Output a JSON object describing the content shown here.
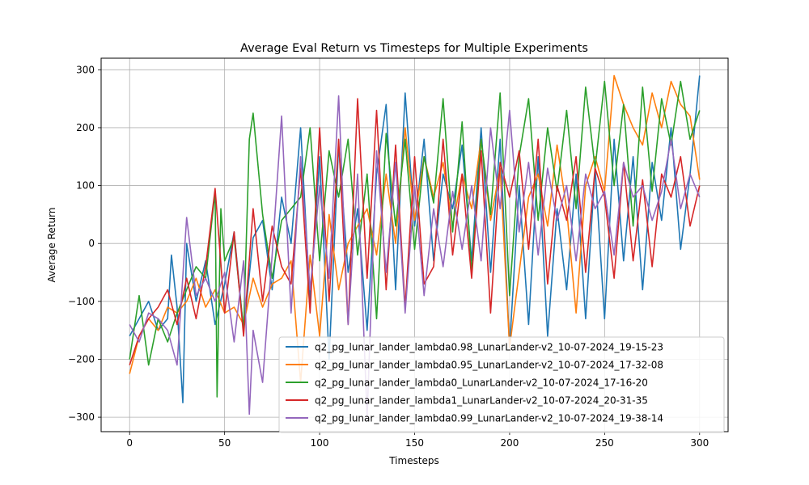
{
  "chart_data": {
    "type": "line",
    "title": "Average Eval Return vs Timesteps for Multiple Experiments",
    "xlabel": "Timesteps",
    "ylabel": "Average Return",
    "xlim": [
      -15,
      315
    ],
    "ylim": [
      -325,
      320
    ],
    "xticks": [
      0,
      50,
      100,
      150,
      200,
      250,
      300
    ],
    "yticks": [
      -300,
      -200,
      -100,
      0,
      100,
      200,
      300
    ],
    "grid": true,
    "legend_position": "lower-right",
    "series": [
      {
        "name": "q2_pg_lunar_lander_lambda0.98_LunarLander-v2_10-07-2024_19-15-23",
        "color": "#1f77b4",
        "x": [
          0,
          5,
          10,
          15,
          20,
          22,
          25,
          28,
          30,
          35,
          40,
          45,
          50,
          55,
          60,
          65,
          70,
          75,
          80,
          85,
          90,
          95,
          100,
          105,
          110,
          115,
          120,
          125,
          130,
          135,
          140,
          145,
          150,
          155,
          160,
          165,
          170,
          175,
          180,
          185,
          190,
          195,
          200,
          205,
          210,
          215,
          220,
          225,
          230,
          235,
          240,
          245,
          250,
          255,
          260,
          265,
          270,
          275,
          280,
          285,
          290,
          295,
          300
        ],
        "y": [
          -160,
          -130,
          -100,
          -150,
          -130,
          -20,
          -110,
          -275,
          0,
          -100,
          -30,
          -140,
          -70,
          20,
          -150,
          10,
          40,
          -80,
          80,
          0,
          200,
          -100,
          150,
          -200,
          170,
          -50,
          60,
          -150,
          120,
          240,
          -80,
          260,
          30,
          180,
          -30,
          120,
          60,
          170,
          -30,
          200,
          -50,
          180,
          -180,
          100,
          -140,
          150,
          -160,
          60,
          -80,
          120,
          -130,
          130,
          -130,
          180,
          -30,
          150,
          -80,
          140,
          40,
          200,
          -10,
          120,
          290
        ]
      },
      {
        "name": "q2_pg_lunar_lander_lambda0.95_LunarLander-v2_10-07-2024_17-32-08",
        "color": "#ff7f0e",
        "x": [
          0,
          5,
          10,
          15,
          20,
          25,
          30,
          35,
          40,
          45,
          50,
          55,
          60,
          65,
          70,
          75,
          80,
          85,
          90,
          95,
          100,
          105,
          110,
          115,
          120,
          125,
          130,
          135,
          140,
          145,
          150,
          155,
          160,
          165,
          170,
          175,
          180,
          185,
          190,
          195,
          200,
          205,
          210,
          215,
          220,
          225,
          230,
          235,
          240,
          245,
          250,
          255,
          260,
          265,
          270,
          275,
          280,
          285,
          290,
          295,
          300
        ],
        "y": [
          -225,
          -160,
          -130,
          -150,
          -110,
          -120,
          -100,
          -60,
          -110,
          -80,
          -120,
          -110,
          -140,
          -60,
          -110,
          -70,
          -60,
          -30,
          -240,
          -20,
          -160,
          50,
          -80,
          0,
          30,
          60,
          -20,
          120,
          0,
          200,
          40,
          150,
          80,
          140,
          30,
          120,
          60,
          180,
          40,
          130,
          -180,
          -50,
          80,
          120,
          30,
          170,
          60,
          -120,
          100,
          150,
          90,
          290,
          240,
          200,
          170,
          260,
          200,
          280,
          240,
          220,
          110
        ]
      },
      {
        "name": "q2_pg_lunar_lander_lambda0_LunarLander-v2_10-07-2024_17-16-20",
        "color": "#2ca02c",
        "x": [
          0,
          5,
          10,
          15,
          20,
          25,
          30,
          35,
          40,
          45,
          46,
          48,
          50,
          55,
          60,
          63,
          65,
          70,
          75,
          80,
          85,
          90,
          95,
          100,
          105,
          110,
          115,
          120,
          125,
          130,
          135,
          140,
          145,
          150,
          155,
          160,
          165,
          170,
          175,
          180,
          185,
          190,
          195,
          200,
          205,
          210,
          215,
          220,
          225,
          230,
          235,
          240,
          245,
          250,
          255,
          260,
          265,
          270,
          275,
          280,
          285,
          290,
          295,
          300
        ],
        "y": [
          -200,
          -90,
          -210,
          -130,
          -170,
          -120,
          -80,
          -40,
          -60,
          90,
          -265,
          60,
          -30,
          10,
          -150,
          180,
          225,
          50,
          -60,
          40,
          60,
          80,
          200,
          -30,
          160,
          80,
          180,
          -20,
          120,
          -130,
          190,
          30,
          180,
          -10,
          150,
          70,
          250,
          20,
          210,
          -50,
          180,
          50,
          260,
          -90,
          150,
          250,
          40,
          200,
          90,
          230,
          60,
          270,
          130,
          280,
          100,
          240,
          30,
          270,
          90,
          250,
          170,
          280,
          180,
          230
        ]
      },
      {
        "name": "q2_pg_lunar_lander_lambda1_LunarLander-v2_10-07-2024_20-31-35",
        "color": "#d62728",
        "x": [
          0,
          5,
          10,
          15,
          20,
          25,
          30,
          35,
          40,
          45,
          50,
          55,
          60,
          65,
          70,
          75,
          80,
          85,
          90,
          95,
          100,
          105,
          110,
          115,
          120,
          125,
          130,
          135,
          140,
          145,
          150,
          155,
          160,
          165,
          170,
          175,
          180,
          185,
          190,
          195,
          200,
          205,
          210,
          215,
          220,
          225,
          230,
          235,
          240,
          245,
          250,
          255,
          260,
          265,
          270,
          275,
          280,
          285,
          290,
          295,
          300
        ],
        "y": [
          -210,
          -160,
          -130,
          -110,
          -80,
          -140,
          -60,
          -130,
          -40,
          95,
          -120,
          20,
          -160,
          60,
          -100,
          30,
          -40,
          -70,
          130,
          -120,
          200,
          -100,
          180,
          -140,
          250,
          -60,
          230,
          -80,
          170,
          -110,
          150,
          -70,
          -40,
          180,
          -20,
          120,
          -60,
          160,
          -120,
          140,
          80,
          160,
          -10,
          180,
          -70,
          100,
          40,
          150,
          -50,
          130,
          80,
          -60,
          140,
          -30,
          110,
          -40,
          120,
          80,
          150,
          30,
          100
        ]
      },
      {
        "name": "q2_pg_lunar_lander_lambda0.99_LunarLander-v2_10-07-2024_19-38-14",
        "color": "#9467bd",
        "x": [
          0,
          5,
          10,
          15,
          20,
          25,
          30,
          35,
          40,
          45,
          50,
          55,
          60,
          63,
          65,
          70,
          75,
          80,
          85,
          90,
          95,
          100,
          105,
          110,
          115,
          120,
          125,
          130,
          135,
          140,
          145,
          150,
          155,
          160,
          165,
          170,
          175,
          180,
          185,
          190,
          195,
          200,
          205,
          210,
          215,
          220,
          225,
          230,
          235,
          240,
          245,
          250,
          255,
          260,
          265,
          270,
          275,
          280,
          285,
          290,
          295,
          300
        ],
        "y": [
          -140,
          -170,
          -120,
          -130,
          -150,
          -210,
          45,
          -90,
          -60,
          -100,
          -50,
          -170,
          -30,
          -295,
          -150,
          -240,
          -20,
          220,
          -120,
          150,
          -80,
          100,
          -60,
          255,
          -140,
          120,
          -300,
          160,
          -50,
          140,
          -120,
          100,
          -90,
          60,
          -40,
          90,
          -10,
          100,
          -30,
          200,
          60,
          230,
          20,
          140,
          -20,
          130,
          40,
          100,
          -30,
          120,
          60,
          90,
          -20,
          140,
          80,
          100,
          40,
          90,
          180,
          60,
          120,
          80
        ]
      }
    ]
  }
}
